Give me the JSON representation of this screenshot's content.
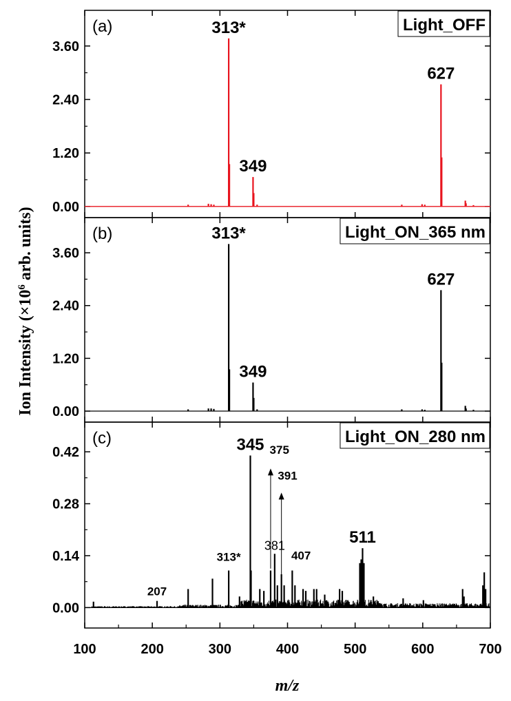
{
  "chart_data": {
    "type": "line",
    "xlabel": "m/z",
    "ylabel": "Ion Intensity (×10",
    "ylabel_sup": "6",
    "ylabel_suffix": " arb. units)",
    "x_ticks": [
      "100",
      "200",
      "300",
      "400",
      "500",
      "600",
      "700"
    ],
    "x_tick_values": [
      100,
      200,
      300,
      400,
      500,
      600,
      700
    ],
    "xlim": [
      100,
      700
    ],
    "panels": [
      {
        "tag": "(a)",
        "legend": "Light_OFF",
        "color": "#e8141e",
        "ylim": [
          -0.25,
          4.4
        ],
        "y_ticks": [
          "0.00",
          "1.20",
          "2.40",
          "3.60"
        ],
        "y_tick_values": [
          0,
          1.2,
          2.4,
          3.6
        ],
        "peaks": [
          {
            "x": 313,
            "y": 3.77
          },
          {
            "x": 314,
            "y": 0.95
          },
          {
            "x": 349,
            "y": 0.66
          },
          {
            "x": 350,
            "y": 0.3
          },
          {
            "x": 627,
            "y": 2.74
          },
          {
            "x": 628,
            "y": 1.1
          },
          {
            "x": 663,
            "y": 0.13
          },
          {
            "x": 664,
            "y": 0.07
          },
          {
            "x": 253,
            "y": 0.04
          },
          {
            "x": 283,
            "y": 0.06
          },
          {
            "x": 287,
            "y": 0.05
          },
          {
            "x": 291,
            "y": 0.04
          },
          {
            "x": 355,
            "y": 0.04
          },
          {
            "x": 569,
            "y": 0.04
          },
          {
            "x": 599,
            "y": 0.05
          },
          {
            "x": 603,
            "y": 0.04
          },
          {
            "x": 675,
            "y": 0.03
          }
        ],
        "labels": [
          {
            "text": "313*",
            "x": 313,
            "y": 3.77,
            "style": "big"
          },
          {
            "text": "349",
            "x": 349,
            "y": 0.66,
            "style": "big"
          },
          {
            "text": "627",
            "x": 627,
            "y": 2.74,
            "style": "big"
          }
        ]
      },
      {
        "tag": "(b)",
        "legend": "Light_ON_365 nm",
        "color": "#000000",
        "ylim": [
          -0.25,
          4.4
        ],
        "y_ticks": [
          "0.00",
          "1.20",
          "2.40",
          "3.60"
        ],
        "y_tick_values": [
          0,
          1.2,
          2.4,
          3.6
        ],
        "peaks": [
          {
            "x": 313,
            "y": 3.8
          },
          {
            "x": 314,
            "y": 0.95
          },
          {
            "x": 349,
            "y": 0.65
          },
          {
            "x": 350,
            "y": 0.3
          },
          {
            "x": 627,
            "y": 2.75
          },
          {
            "x": 628,
            "y": 1.1
          },
          {
            "x": 663,
            "y": 0.12
          },
          {
            "x": 664,
            "y": 0.06
          },
          {
            "x": 253,
            "y": 0.04
          },
          {
            "x": 283,
            "y": 0.06
          },
          {
            "x": 287,
            "y": 0.06
          },
          {
            "x": 291,
            "y": 0.05
          },
          {
            "x": 355,
            "y": 0.04
          },
          {
            "x": 569,
            "y": 0.04
          },
          {
            "x": 599,
            "y": 0.04
          },
          {
            "x": 603,
            "y": 0.03
          },
          {
            "x": 675,
            "y": 0.03
          }
        ],
        "labels": [
          {
            "text": "313*",
            "x": 313,
            "y": 3.8,
            "style": "big"
          },
          {
            "text": "349",
            "x": 349,
            "y": 0.65,
            "style": "big"
          },
          {
            "text": "627",
            "x": 627,
            "y": 2.75,
            "style": "big"
          }
        ]
      },
      {
        "tag": "(c)",
        "legend": "Light_ON_280 nm",
        "color": "#000000",
        "ylim": [
          -0.055,
          0.5
        ],
        "y_ticks": [
          "0.00",
          "0.14",
          "0.28",
          "0.42"
        ],
        "y_tick_values": [
          0,
          0.14,
          0.28,
          0.42
        ],
        "noise": true,
        "peaks": [
          {
            "x": 113,
            "y": 0.016
          },
          {
            "x": 207,
            "y": 0.018
          },
          {
            "x": 253,
            "y": 0.05
          },
          {
            "x": 289,
            "y": 0.078
          },
          {
            "x": 313,
            "y": 0.1
          },
          {
            "x": 329,
            "y": 0.03
          },
          {
            "x": 345,
            "y": 0.41
          },
          {
            "x": 346,
            "y": 0.1
          },
          {
            "x": 359,
            "y": 0.05
          },
          {
            "x": 365,
            "y": 0.045
          },
          {
            "x": 375,
            "y": 0.1
          },
          {
            "x": 381,
            "y": 0.145
          },
          {
            "x": 385,
            "y": 0.06
          },
          {
            "x": 391,
            "y": 0.09
          },
          {
            "x": 395,
            "y": 0.06
          },
          {
            "x": 407,
            "y": 0.1
          },
          {
            "x": 411,
            "y": 0.06
          },
          {
            "x": 423,
            "y": 0.05
          },
          {
            "x": 427,
            "y": 0.045
          },
          {
            "x": 439,
            "y": 0.05
          },
          {
            "x": 443,
            "y": 0.05
          },
          {
            "x": 455,
            "y": 0.035
          },
          {
            "x": 477,
            "y": 0.05
          },
          {
            "x": 481,
            "y": 0.045
          },
          {
            "x": 507,
            "y": 0.12
          },
          {
            "x": 509,
            "y": 0.13
          },
          {
            "x": 511,
            "y": 0.16
          },
          {
            "x": 513,
            "y": 0.12
          },
          {
            "x": 527,
            "y": 0.03
          },
          {
            "x": 571,
            "y": 0.025
          },
          {
            "x": 601,
            "y": 0.02
          },
          {
            "x": 659,
            "y": 0.05
          },
          {
            "x": 661,
            "y": 0.03
          },
          {
            "x": 689,
            "y": 0.06
          },
          {
            "x": 691,
            "y": 0.095
          },
          {
            "x": 693,
            "y": 0.05
          }
        ],
        "labels": [
          {
            "text": "207",
            "x": 207,
            "y": 0.018,
            "style": "small"
          },
          {
            "text": "313*",
            "x": 313,
            "y": 0.1,
            "style": "small"
          },
          {
            "text": "345",
            "x": 345,
            "y": 0.41,
            "style": "big"
          },
          {
            "text": "381",
            "x": 381,
            "y": 0.145,
            "style": "plain"
          },
          {
            "text": "407",
            "x": 420,
            "y": 0.1,
            "style": "small"
          },
          {
            "text": "511",
            "x": 511,
            "y": 0.16,
            "style": "big"
          },
          {
            "text": "375",
            "x": 388,
            "y": 0.4,
            "style": "small"
          },
          {
            "text": "391",
            "x": 400,
            "y": 0.33,
            "style": "small"
          }
        ],
        "arrows": [
          {
            "x": 375,
            "from": 0.105,
            "to": 0.375
          },
          {
            "x": 391,
            "from": 0.09,
            "to": 0.31
          }
        ]
      }
    ]
  }
}
